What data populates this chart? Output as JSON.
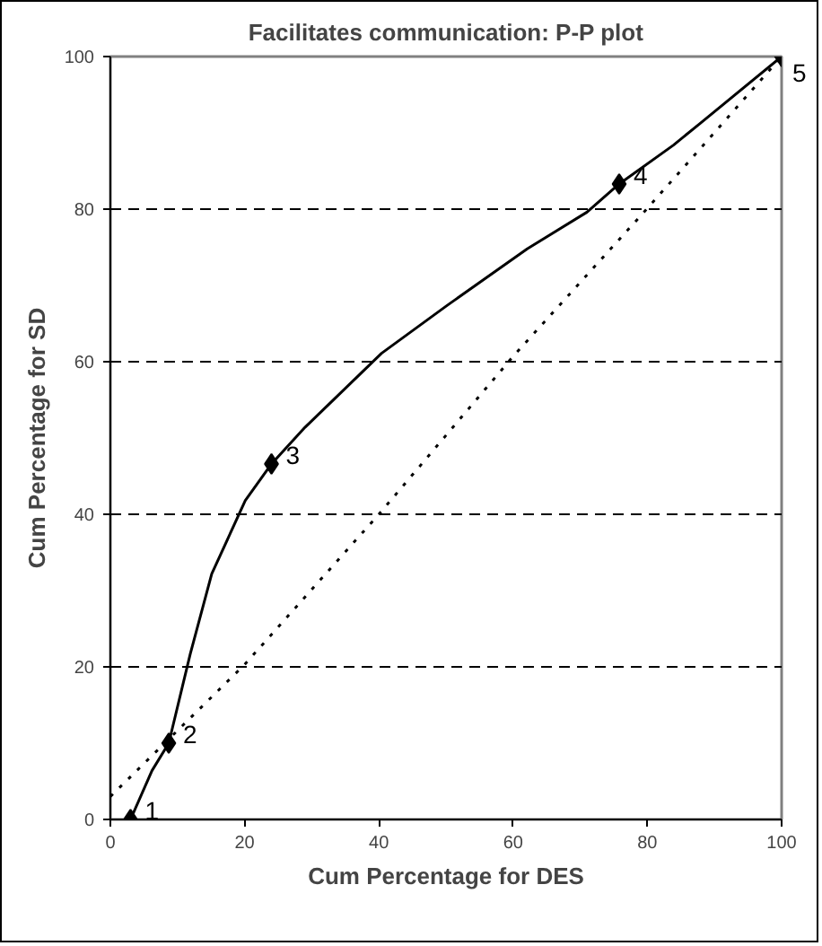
{
  "chart_data": {
    "type": "line",
    "title": "Facilitates communication: P-P plot",
    "xlabel": "Cum Percentage for DES",
    "ylabel": "Cum Percentage for SD",
    "xlim": [
      0,
      100
    ],
    "ylim": [
      0,
      100
    ],
    "xticks": [
      0,
      20,
      40,
      60,
      80,
      100
    ],
    "yticks": [
      0,
      20,
      40,
      60,
      80,
      100
    ],
    "grid": "y",
    "series": [
      {
        "type": "line",
        "color": "#000000",
        "line_style": "solid",
        "marker": "none",
        "x": [
          3,
          6.2,
          8.7,
          11.9,
          15.1,
          20.1,
          24,
          29,
          40.4,
          50.2,
          62.1,
          71,
          75.8,
          83.9,
          87.8,
          100
        ],
        "values": [
          0,
          6.4,
          10,
          21.7,
          32.2,
          41.8,
          46.6,
          51.4,
          61.1,
          67.4,
          74.8,
          79.6,
          83.3,
          88.4,
          91.2,
          100
        ]
      },
      {
        "type": "scatter",
        "color": "#000000",
        "marker": "diamond",
        "x": [
          3,
          8.7,
          24,
          75.8,
          100
        ],
        "values": [
          0,
          10,
          46.6,
          83.3,
          100
        ]
      },
      {
        "type": "line",
        "color": "#000000",
        "line_style": "dotted",
        "marker": "none",
        "x": [
          0,
          20,
          40,
          60,
          80,
          100
        ],
        "values": [
          3,
          20.3,
          40,
          60.7,
          80.1,
          100
        ]
      }
    ],
    "annotations": [
      {
        "text": "1",
        "x": 3,
        "y": 0
      },
      {
        "text": "2",
        "x": 8.7,
        "y": 10
      },
      {
        "text": "3",
        "x": 24,
        "y": 46.6
      },
      {
        "text": "4",
        "x": 75.8,
        "y": 83.3
      },
      {
        "text": "5",
        "x": 100,
        "y": 100
      }
    ]
  }
}
